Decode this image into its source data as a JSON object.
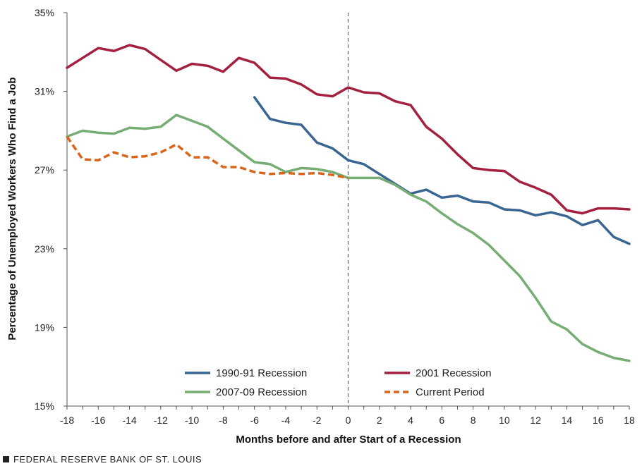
{
  "chart_data": {
    "type": "line",
    "xlabel": "Months before and after Start of a Recession",
    "ylabel": "Percentage of Unemployed Workers Who Find a Job",
    "xlim": [
      -18,
      18
    ],
    "ylim": [
      15,
      35
    ],
    "x_ticks": [
      "-18",
      "-16",
      "-14",
      "-12",
      "-10",
      "-8",
      "-6",
      "-4",
      "-2",
      "0",
      "2",
      "4",
      "6",
      "8",
      "10",
      "12",
      "14",
      "16",
      "18"
    ],
    "y_ticks": [
      "15%",
      "19%",
      "23%",
      "27%",
      "31%",
      "35%"
    ],
    "reference_line": {
      "x": 0,
      "style": "dashed",
      "color": "#3a6e9b"
    },
    "legend_position": "bottom-center",
    "series": [
      {
        "name": "1990-91 Recession",
        "color": "#3a6592",
        "dashed": false,
        "x": [
          -6,
          -5,
          -4,
          -3,
          -2,
          -1,
          0,
          1,
          2,
          3,
          4,
          5,
          6,
          7,
          8,
          9,
          10,
          11,
          12,
          13,
          14,
          15,
          16,
          17,
          18
        ],
        "values": [
          30.7,
          29.6,
          29.4,
          29.3,
          28.4,
          28.1,
          27.5,
          27.3,
          26.8,
          26.3,
          25.8,
          26.0,
          25.6,
          25.7,
          25.4,
          25.35,
          25.0,
          24.95,
          24.7,
          24.85,
          24.65,
          24.2,
          24.45,
          23.6,
          23.25
        ]
      },
      {
        "name": "2001 Recession",
        "color": "#a3203f",
        "dashed": false,
        "x": [
          -18,
          -17,
          -16,
          -15,
          -14,
          -13,
          -12,
          -11,
          -10,
          -9,
          -8,
          -7,
          -6,
          -5,
          -4,
          -3,
          -2,
          -1,
          0,
          1,
          2,
          3,
          4,
          5,
          6,
          7,
          8,
          9,
          10,
          11,
          12,
          13,
          14,
          15,
          16,
          17,
          18
        ],
        "values": [
          32.2,
          32.7,
          33.2,
          33.05,
          33.35,
          33.15,
          32.6,
          32.05,
          32.4,
          32.3,
          32.0,
          32.7,
          32.45,
          31.7,
          31.65,
          31.35,
          30.85,
          30.75,
          31.2,
          30.95,
          30.9,
          30.5,
          30.3,
          29.2,
          28.6,
          27.8,
          27.1,
          27.0,
          26.95,
          26.4,
          26.1,
          25.75,
          24.95,
          24.8,
          25.05,
          25.05,
          25.0
        ]
      },
      {
        "name": "2007-09 Recession",
        "color": "#76ad74",
        "dashed": false,
        "x": [
          -18,
          -17,
          -16,
          -15,
          -14,
          -13,
          -12,
          -11,
          -10,
          -9,
          -8,
          -7,
          -6,
          -5,
          -4,
          -3,
          -2,
          -1,
          0,
          1,
          2,
          3,
          4,
          5,
          6,
          7,
          8,
          9,
          10,
          11,
          12,
          13,
          14,
          15,
          16,
          17,
          18
        ],
        "values": [
          28.7,
          29.0,
          28.9,
          28.85,
          29.15,
          29.1,
          29.2,
          29.8,
          29.5,
          29.2,
          28.6,
          28.0,
          27.4,
          27.3,
          26.9,
          27.1,
          27.05,
          26.9,
          26.6,
          26.6,
          26.6,
          26.25,
          25.75,
          25.4,
          24.8,
          24.25,
          23.8,
          23.2,
          22.4,
          21.6,
          20.5,
          19.3,
          18.9,
          18.15,
          17.75,
          17.45,
          17.3
        ]
      },
      {
        "name": "Current Period",
        "color": "#d9651c",
        "dashed": true,
        "x": [
          -18,
          -17,
          -16,
          -15,
          -14,
          -13,
          -12,
          -11,
          -10,
          -9,
          -8,
          -7,
          -6,
          -5,
          -4,
          -3,
          -2,
          -1,
          0
        ],
        "values": [
          28.7,
          27.55,
          27.5,
          27.9,
          27.65,
          27.7,
          27.9,
          28.3,
          27.65,
          27.65,
          27.15,
          27.15,
          26.9,
          26.8,
          26.85,
          26.8,
          26.85,
          26.75,
          26.6
        ]
      }
    ]
  },
  "footer": {
    "source": "FEDERAL RESERVE BANK OF ST. LOUIS"
  }
}
